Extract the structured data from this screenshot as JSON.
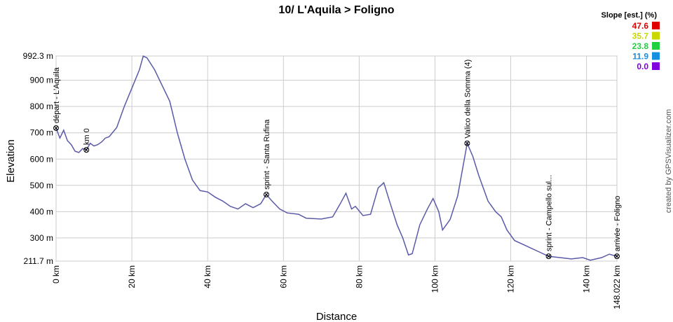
{
  "chart_data": {
    "type": "line",
    "title": "10/ L'Aquila > Foligno",
    "x_label": "Distance",
    "y_label": "Elevation",
    "credit": "created by GPSVisualizer.com",
    "legend_title": "Slope [est.] (%)",
    "legend": [
      {
        "value": 47.6,
        "label": "47.6",
        "color": "#e00000"
      },
      {
        "value": 35.7,
        "label": "35.7",
        "color": "#c8d800"
      },
      {
        "value": 23.8,
        "label": "23.8",
        "color": "#20d040"
      },
      {
        "value": 11.9,
        "label": "11.9",
        "color": "#1890e0"
      },
      {
        "value": 0,
        "label": "0.0",
        "color": "#8000e0"
      }
    ],
    "xlim": [
      0,
      148.022
    ],
    "ylim": [
      211.7,
      992.3
    ],
    "xticks": [
      {
        "value": 0,
        "label": "0 km"
      },
      {
        "value": 20,
        "label": "20 km"
      },
      {
        "value": 40,
        "label": "40 km"
      },
      {
        "value": 60,
        "label": "60 km"
      },
      {
        "value": 80,
        "label": "80 km"
      },
      {
        "value": 100,
        "label": "100 km"
      },
      {
        "value": 120,
        "label": "120 km"
      },
      {
        "value": 140,
        "label": "140 km"
      },
      {
        "value": 148.022,
        "label": "148.022 km"
      }
    ],
    "yticks": [
      {
        "value": 211.7,
        "label": "211.7 m"
      },
      {
        "value": 300,
        "label": "300 m"
      },
      {
        "value": 400,
        "label": "400 m"
      },
      {
        "value": 500,
        "label": "500 m"
      },
      {
        "value": 600,
        "label": "600 m"
      },
      {
        "value": 700,
        "label": "700 m"
      },
      {
        "value": 800,
        "label": "800 m"
      },
      {
        "value": 900,
        "label": "900 m"
      },
      {
        "value": 992.3,
        "label": "992.3 m"
      }
    ],
    "grid": true,
    "series": [
      {
        "name": "Elevation",
        "color": "#5a5aa8",
        "x": [
          0,
          1,
          2,
          3,
          4,
          5,
          6,
          7,
          8,
          9,
          10,
          11,
          12,
          13,
          14,
          16,
          18,
          20,
          22,
          23,
          24,
          26,
          28,
          30,
          32,
          34,
          36,
          38,
          40,
          42,
          44,
          46,
          48,
          50,
          52,
          54,
          55.5,
          57,
          59,
          61,
          64,
          66,
          70,
          73,
          75,
          76.5,
          78,
          79,
          81,
          83,
          85,
          86.5,
          88,
          90,
          91.5,
          93,
          94,
          96,
          98,
          99.5,
          101,
          102,
          104,
          106,
          108.5,
          110,
          111.5,
          112.5,
          114,
          116,
          117.5,
          119,
          121,
          124,
          127,
          130,
          133,
          136,
          139,
          141,
          144,
          146,
          148.022
        ],
        "values": [
          718,
          680,
          710,
          670,
          655,
          630,
          625,
          640,
          635,
          660,
          650,
          655,
          665,
          680,
          685,
          720,
          800,
          870,
          940,
          992,
          985,
          940,
          880,
          820,
          700,
          600,
          520,
          480,
          475,
          455,
          440,
          420,
          410,
          430,
          415,
          430,
          465,
          440,
          410,
          395,
          390,
          375,
          372,
          380,
          430,
          470,
          410,
          420,
          385,
          390,
          490,
          510,
          440,
          350,
          300,
          235,
          240,
          350,
          410,
          450,
          400,
          330,
          370,
          460,
          660,
          610,
          540,
          500,
          440,
          400,
          380,
          330,
          290,
          270,
          250,
          230,
          225,
          220,
          225,
          215,
          225,
          238,
          230
        ]
      }
    ],
    "waypoints": [
      {
        "label": "départ - L'Aquila",
        "x": 0,
        "y": 718
      },
      {
        "label": "km 0",
        "x": 8,
        "y": 635
      },
      {
        "label": "sprint - Santa Rufina",
        "x": 55.5,
        "y": 465
      },
      {
        "label": "Valico della Somma (4)",
        "x": 108.5,
        "y": 660
      },
      {
        "label": "sprint - Campello sul...",
        "x": 130,
        "y": 230
      },
      {
        "label": "arrivée - Foligno",
        "x": 148.022,
        "y": 230
      }
    ]
  }
}
